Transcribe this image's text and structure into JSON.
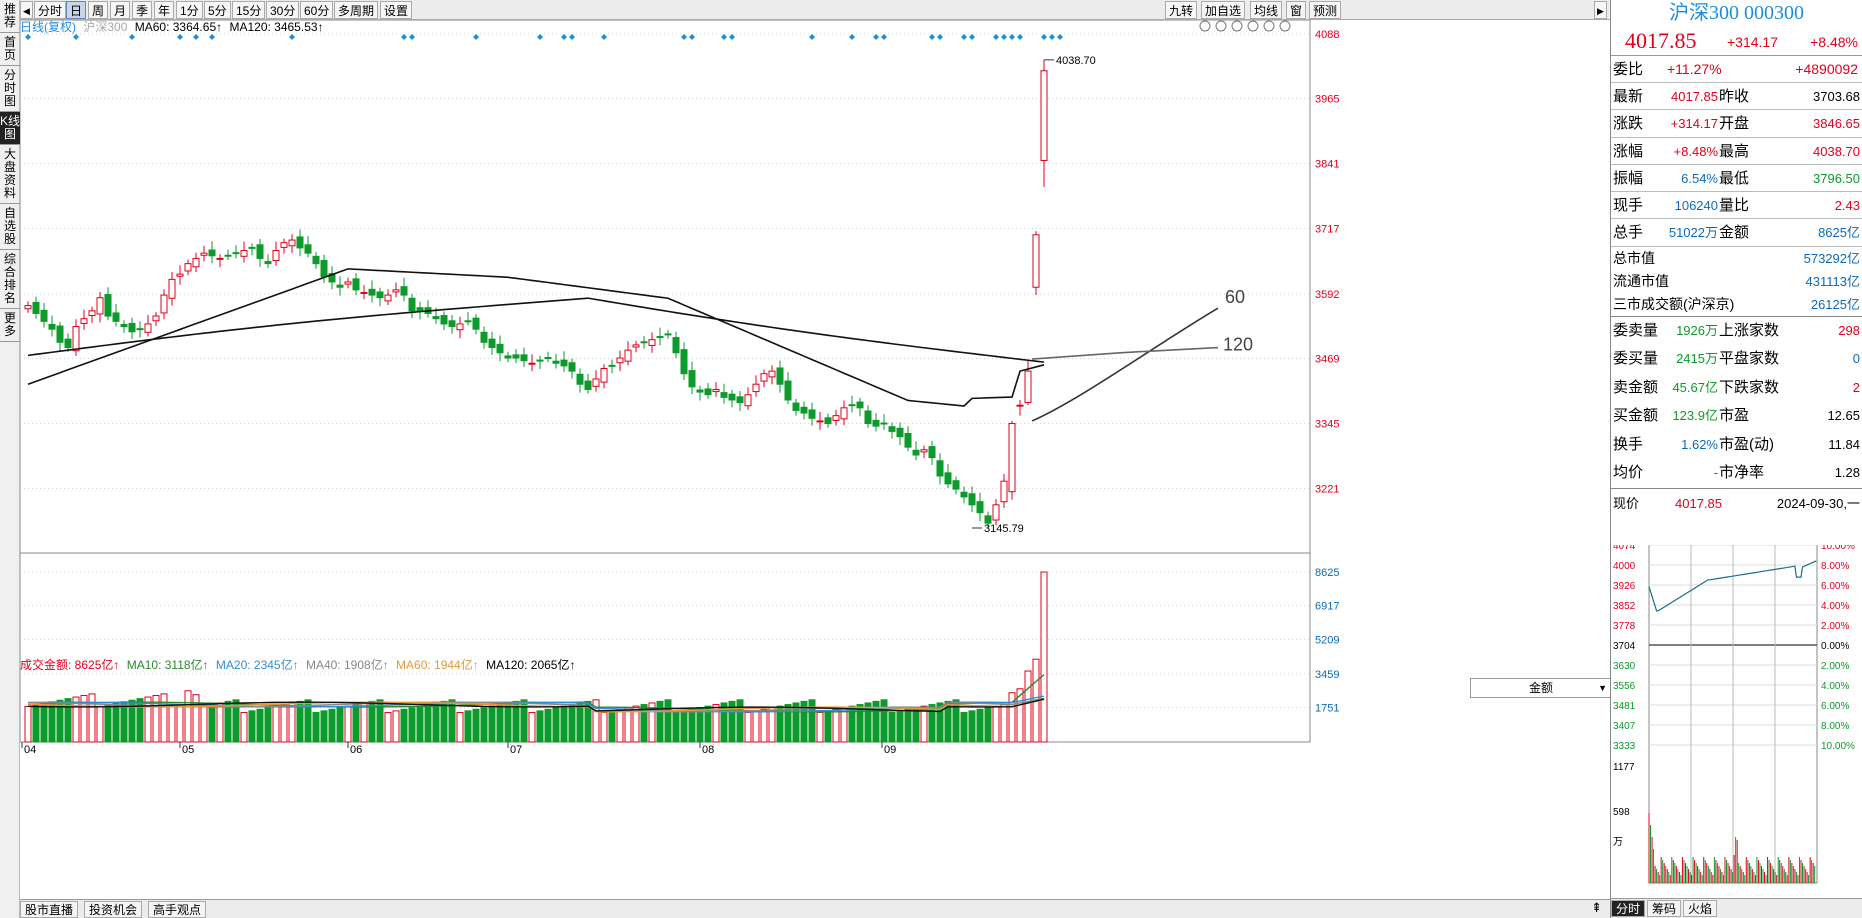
{
  "vtabs": [
    {
      "label": "推荐"
    },
    {
      "label": "首页"
    },
    {
      "label": "分时图"
    },
    {
      "label": "K线图",
      "active": true
    },
    {
      "label": "大盘资料"
    },
    {
      "label": "自选股"
    },
    {
      "label": "综合排名"
    },
    {
      "label": "更多"
    }
  ],
  "toolbar": {
    "arrow_left": "◀",
    "arrow_right": "▶",
    "periods": [
      "分时",
      "日",
      "周",
      "月",
      "季",
      "年",
      "1分",
      "5分",
      "15分",
      "30分",
      "60分",
      "多周期",
      "设置"
    ],
    "active_period": "日",
    "right_items": [
      "九转",
      "加自选",
      "均线",
      "窗",
      "预测"
    ]
  },
  "legend": {
    "title": "日线(复权)",
    "name": "沪深300",
    "ma60": "MA60: 3364.65↑",
    "ma120": "MA120: 3465.53↑"
  },
  "icons": [
    "eye-icon",
    "hand-icon",
    "undo-icon",
    "lock-icon",
    "zoom-out-icon",
    "zoom-in-icon"
  ],
  "price_axis": {
    "ticks": [
      "4088",
      "3965",
      "3841",
      "3717",
      "3592",
      "3469",
      "3345",
      "3221"
    ],
    "min": 3100,
    "max": 4088
  },
  "annotations": {
    "high": "4038.70",
    "low": "3145.79",
    "ma60_label": "60",
    "ma120_label": "120"
  },
  "volume_legend": {
    "amount": "成交金额: 8625亿↑",
    "ma10": "MA10: 3118亿↑",
    "ma20": "MA20: 2345亿↑",
    "ma40": "MA40: 1908亿↑",
    "ma60": "MA60: 1944亿↑",
    "ma120": "MA120: 2065亿↑"
  },
  "volume_axis": {
    "ticks": [
      "8625",
      "6917",
      "5209",
      "3459",
      "1751"
    ],
    "max": 8625
  },
  "amount_select": "金额",
  "months": [
    "04",
    "05",
    "06",
    "07",
    "08",
    "09"
  ],
  "bottom_tabs": [
    "股市直播",
    "投资机会",
    "高手观点"
  ],
  "colors": {
    "up": "#e0001a",
    "down": "#0a9b2a",
    "ma60": "#111111",
    "ma120": "#111111",
    "ma10": "#2a8a2a",
    "ma20": "#2e8fd8",
    "ma40": "#888888",
    "vma60": "#e39a3c",
    "diamond": "#1a94d0"
  },
  "quote": {
    "title": "沪深300 000300",
    "price": "4017.85",
    "change": "+314.17",
    "change_pct": "+8.48%",
    "weibi_label": "委比",
    "weibi": "+11.27%",
    "weicha": "+4890092",
    "rows": [
      {
        "l1": "最新",
        "v1": "4017.85",
        "l2": "昨收",
        "v2": "3703.68"
      },
      {
        "l1": "涨跌",
        "v1": "+314.17",
        "l2": "开盘",
        "v2": "3846.65"
      },
      {
        "l1": "涨幅",
        "v1": "+8.48%",
        "l2": "最高",
        "v2": "4038.70"
      },
      {
        "l1": "振幅",
        "v1": "6.54%",
        "l2": "最低",
        "v2": "3796.50"
      },
      {
        "l1": "现手",
        "v1": "106240",
        "l2": "量比",
        "v2": "2.43"
      },
      {
        "l1": "总手",
        "v1": "51022万",
        "l2": "金额",
        "v2": "8625亿"
      }
    ],
    "mkt": [
      {
        "l": "总市值",
        "v": "573292亿"
      },
      {
        "l": "流通市值",
        "v": "431113亿"
      },
      {
        "l": "三市成交额(沪深京)",
        "v": "26125亿"
      }
    ],
    "book": [
      {
        "l1": "委卖量",
        "v1": "1926万",
        "l2": "上涨家数",
        "v2": "298"
      },
      {
        "l1": "委买量",
        "v1": "2415万",
        "l2": "平盘家数",
        "v2": "0"
      },
      {
        "l1": "卖金额",
        "v1": "45.67亿",
        "l2": "下跌家数",
        "v2": "2"
      },
      {
        "l1": "买金额",
        "v1": "123.9亿",
        "l2": "市盈",
        "v2": "12.65"
      },
      {
        "l1": "换手",
        "v1": "1.62%",
        "l2": "市盈(动)",
        "v2": "11.84"
      },
      {
        "l1": "均价",
        "v1": "-",
        "l2": "市净率",
        "v2": "1.28"
      }
    ],
    "mini": {
      "label": "现价",
      "price": "4017.85",
      "date": "2024-09-30,一",
      "left_ticks": [
        "4074",
        "4000",
        "3926",
        "3852",
        "3778",
        "3704",
        "3630",
        "3556",
        "3481",
        "3407",
        "3333"
      ],
      "right_ticks": [
        "10.00%",
        "8.00%",
        "6.00%",
        "4.00%",
        "2.00%",
        "0.00%",
        "2.00%",
        "4.00%",
        "6.00%",
        "8.00%",
        "10.00%"
      ],
      "vol_ticks": [
        "1177",
        "598",
        "万"
      ]
    },
    "mini_tabs": [
      "分时",
      "筹码",
      "火焰"
    ]
  }
}
